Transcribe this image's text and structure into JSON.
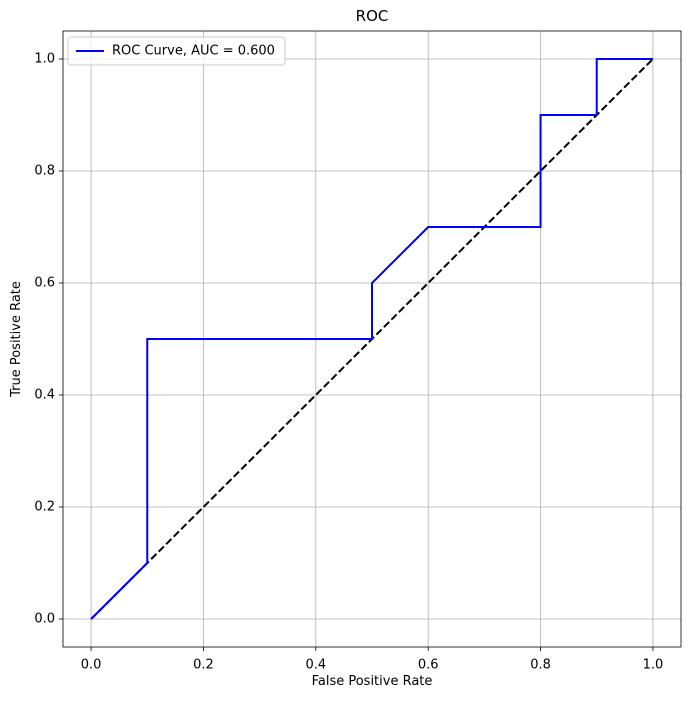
{
  "chart_data": {
    "type": "line",
    "title": "ROC",
    "x_label": "False Positive Rate",
    "y_label": "True Positive Rate",
    "series": [
      {
        "name": "ROC Curve, AUC = 0.600",
        "color": "#0000ff",
        "x": [
          0,
          0.1,
          0.1,
          0.5,
          0.5,
          0.6,
          0.8,
          0.8,
          0.9,
          0.9,
          1.0
        ],
        "values": [
          0,
          0.1,
          0.5,
          0.5,
          0.6,
          0.7,
          0.7,
          0.9,
          0.9,
          1.0,
          1.0
        ]
      },
      {
        "color": "#000000",
        "dashed": true,
        "x": [
          0,
          1
        ],
        "values": [
          0,
          1
        ]
      }
    ],
    "xlim": [
      -0.05,
      1.05
    ],
    "ylim": [
      -0.05,
      1.05
    ],
    "xticks": [
      {
        "value": 0,
        "label": "0.0"
      },
      0.2,
      0.4,
      0.6,
      0.8,
      {
        "value": 1,
        "label": "1.0"
      }
    ],
    "yticks": [
      {
        "value": 0,
        "label": "0.0"
      },
      0.2,
      0.4,
      0.6,
      0.8,
      {
        "value": 1,
        "label": "1.0"
      }
    ],
    "grid": true,
    "legend": "upper left"
  }
}
